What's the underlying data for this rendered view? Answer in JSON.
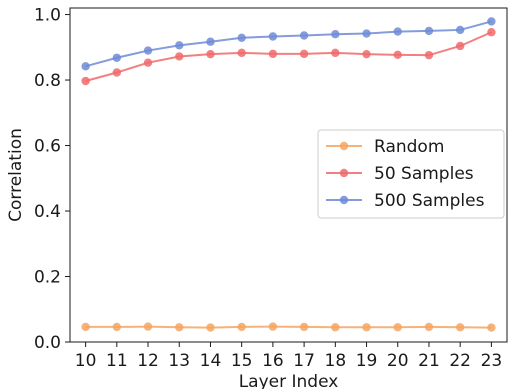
{
  "chart_data": {
    "type": "line",
    "title": "",
    "xlabel": "Layer Index",
    "ylabel": "Correlation",
    "x": [
      10,
      11,
      12,
      13,
      14,
      15,
      16,
      17,
      18,
      19,
      20,
      21,
      22,
      23
    ],
    "xlim": [
      9.5,
      23.5
    ],
    "ylim": [
      0,
      1.02
    ],
    "yticks": [
      "0.0",
      "0.2",
      "0.4",
      "0.6",
      "0.8",
      "1.0"
    ],
    "grid": false,
    "legend_position": "center-right",
    "series": [
      {
        "name": "Random",
        "color": "#f4a460",
        "values": [
          0.046,
          0.046,
          0.047,
          0.045,
          0.044,
          0.046,
          0.047,
          0.046,
          0.045,
          0.045,
          0.045,
          0.046,
          0.045,
          0.044
        ]
      },
      {
        "name": "50 Samples",
        "color": "#f06a6a",
        "values": [
          0.797,
          0.823,
          0.853,
          0.872,
          0.879,
          0.883,
          0.88,
          0.88,
          0.883,
          0.879,
          0.877,
          0.876,
          0.904,
          0.946
        ]
      },
      {
        "name": "500 Samples",
        "color": "#6f8bd6",
        "values": [
          0.842,
          0.868,
          0.89,
          0.906,
          0.917,
          0.929,
          0.933,
          0.936,
          0.94,
          0.942,
          0.948,
          0.95,
          0.953,
          0.979
        ]
      }
    ]
  }
}
